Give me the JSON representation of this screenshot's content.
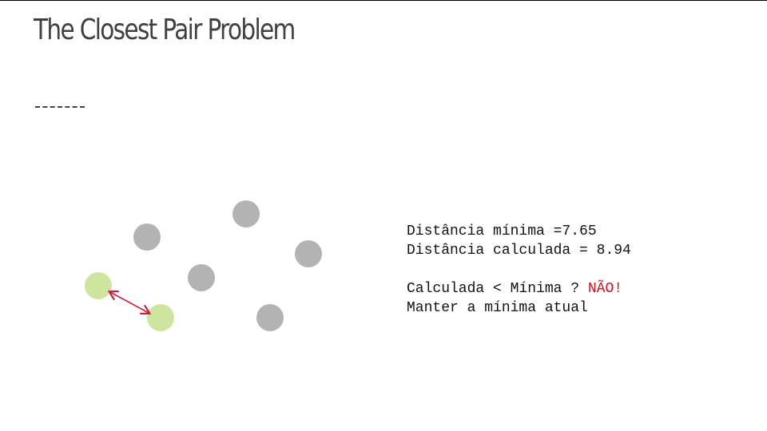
{
  "slide": {
    "title": "The Closest Pair Problem",
    "lines": [
      "Distância mínima =7.65",
      "Distância calculada = 8.94"
    ],
    "question": "Calculada < Mínima ?",
    "answer": "NÃO!",
    "conclusion": "Manter a mínima atual"
  }
}
